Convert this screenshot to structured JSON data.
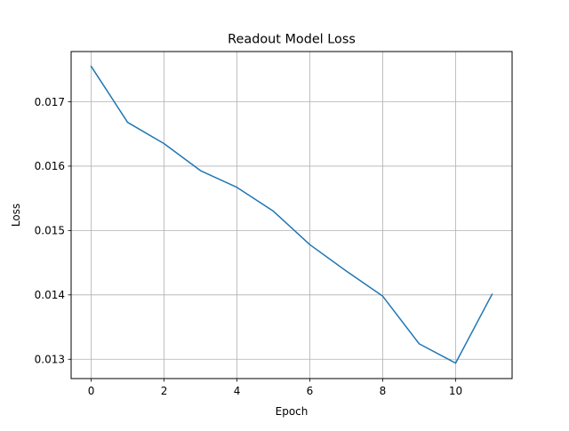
{
  "chart_data": {
    "type": "line",
    "title": "Readout Model Loss",
    "xlabel": "Epoch",
    "ylabel": "Loss",
    "xlim": [
      -0.55,
      11.55
    ],
    "ylim": [
      0.0127,
      0.01778
    ],
    "xticks": [
      0,
      2,
      4,
      6,
      8,
      10
    ],
    "xtick_labels": [
      "0",
      "2",
      "4",
      "6",
      "8",
      "10"
    ],
    "yticks": [
      0.013,
      0.014,
      0.015,
      0.016,
      0.017
    ],
    "ytick_labels": [
      "0.013",
      "0.014",
      "0.015",
      "0.016",
      "0.017"
    ],
    "grid": true,
    "series": [
      {
        "color": "#1f77b4",
        "x": [
          0,
          1,
          2,
          3,
          4,
          5,
          6,
          7,
          8,
          9,
          10,
          11
        ],
        "y": [
          0.01755,
          0.01668,
          0.01635,
          0.01593,
          0.01567,
          0.0153,
          0.01478,
          0.01437,
          0.01398,
          0.01324,
          0.01294,
          0.01401
        ]
      }
    ]
  }
}
